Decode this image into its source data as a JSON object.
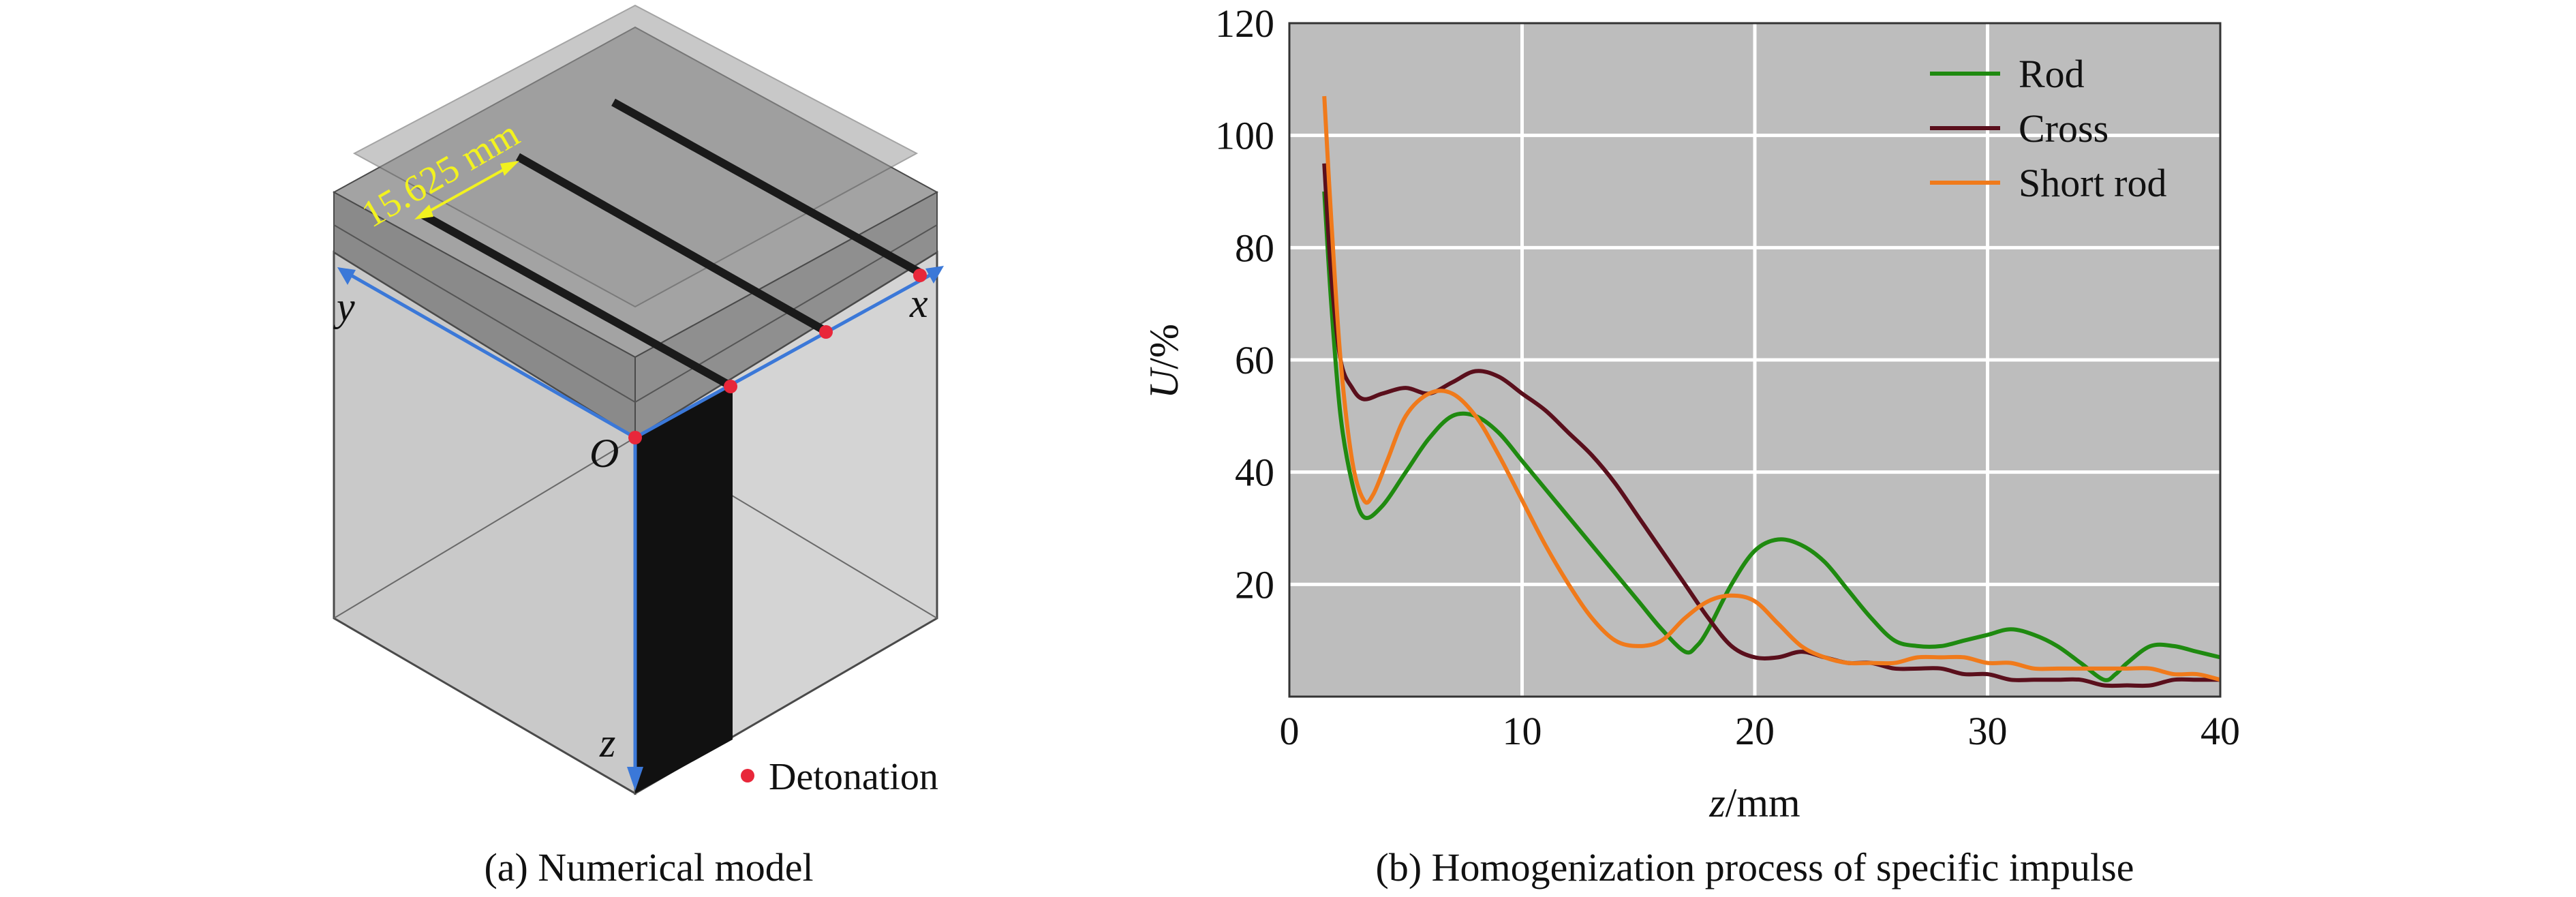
{
  "panel_a": {
    "caption": "(a) Numerical model",
    "dimension_label": "15.625 mm",
    "axis_x": "x",
    "axis_y": "y",
    "axis_z": "z",
    "origin": "O",
    "legend_detonation": "Detonation",
    "colors": {
      "detonation": "#e8273a",
      "axis": "#3b78d8",
      "dimension": "#f2f21f"
    }
  },
  "panel_b": {
    "caption": "(b) Homogenization process of specific impulse"
  },
  "chart_data": {
    "type": "line",
    "title": "",
    "xlabel_italic": "z",
    "xlabel_unit": "/mm",
    "ylabel_italic": "U",
    "ylabel_unit": "/%",
    "xlim": [
      0,
      40
    ],
    "ylim": [
      0,
      120
    ],
    "xticks": [
      0,
      10,
      20,
      30,
      40
    ],
    "yticks": [
      20,
      40,
      60,
      80,
      100,
      120
    ],
    "grid": true,
    "legend_position": "top-right",
    "background": "#bdbdbd",
    "series": [
      {
        "name": "Rod",
        "color": "#1f8a10",
        "x": [
          1.5,
          1.8,
          2.2,
          2.7,
          3.2,
          4.0,
          5.0,
          6.0,
          7.0,
          8.0,
          9.0,
          10.0,
          11.0,
          12.0,
          13.0,
          14.0,
          15.0,
          16.0,
          17.0,
          17.5,
          18.0,
          19.0,
          20.0,
          21.0,
          22.0,
          23.0,
          24.0,
          25.0,
          26.0,
          27.0,
          28.0,
          29.0,
          30.0,
          31.0,
          32.0,
          33.0,
          34.0,
          35.0,
          35.5,
          36.0,
          37.0,
          38.0,
          39.0,
          40.0
        ],
        "values": [
          90,
          70,
          50,
          38,
          32,
          34,
          40,
          46,
          50,
          50,
          47,
          42,
          37,
          32,
          27,
          22,
          17,
          12,
          8,
          9,
          12,
          20,
          26,
          28,
          27,
          24,
          19,
          14,
          10,
          9,
          9,
          10,
          11,
          12,
          11,
          9,
          6,
          3,
          4,
          6,
          9,
          9,
          8,
          7
        ]
      },
      {
        "name": "Cross",
        "color": "#5a0f1c",
        "x": [
          1.5,
          1.8,
          2.2,
          2.7,
          3.2,
          4.0,
          5.0,
          6.0,
          7.0,
          8.0,
          9.0,
          10.0,
          11.0,
          12.0,
          13.0,
          14.0,
          15.0,
          16.0,
          17.0,
          18.0,
          19.0,
          20.0,
          21.0,
          22.0,
          23.0,
          24.0,
          25.0,
          26.0,
          27.0,
          28.0,
          29.0,
          30.0,
          31.0,
          32.0,
          33.0,
          34.0,
          35.0,
          36.0,
          37.0,
          38.0,
          39.0,
          40.0
        ],
        "values": [
          95,
          75,
          60,
          55,
          53,
          54,
          55,
          54,
          56,
          58,
          57,
          54,
          51,
          47,
          43,
          38,
          32,
          26,
          20,
          14,
          9,
          7,
          7,
          8,
          7,
          6,
          6,
          5,
          5,
          5,
          4,
          4,
          3,
          3,
          3,
          3,
          2,
          2,
          2,
          3,
          3,
          3
        ]
      },
      {
        "name": "Short rod",
        "color": "#f07a1b",
        "x": [
          1.5,
          1.8,
          2.2,
          2.7,
          3.2,
          3.6,
          4.2,
          5.0,
          6.0,
          7.0,
          8.0,
          9.0,
          10.0,
          11.0,
          12.0,
          13.0,
          14.0,
          15.0,
          16.0,
          17.0,
          18.0,
          19.0,
          20.0,
          21.0,
          22.0,
          23.0,
          24.0,
          25.0,
          26.0,
          27.0,
          28.0,
          29.0,
          30.0,
          31.0,
          32.0,
          33.0,
          34.0,
          35.0,
          36.0,
          37.0,
          38.0,
          39.0,
          40.0
        ],
        "values": [
          107,
          85,
          60,
          42,
          35,
          36,
          42,
          50,
          54,
          54,
          50,
          43,
          35,
          27,
          20,
          14,
          10,
          9,
          10,
          14,
          17,
          18,
          17,
          13,
          9,
          7,
          6,
          6,
          6,
          7,
          7,
          7,
          6,
          6,
          5,
          5,
          5,
          5,
          5,
          5,
          4,
          4,
          3
        ]
      }
    ]
  }
}
